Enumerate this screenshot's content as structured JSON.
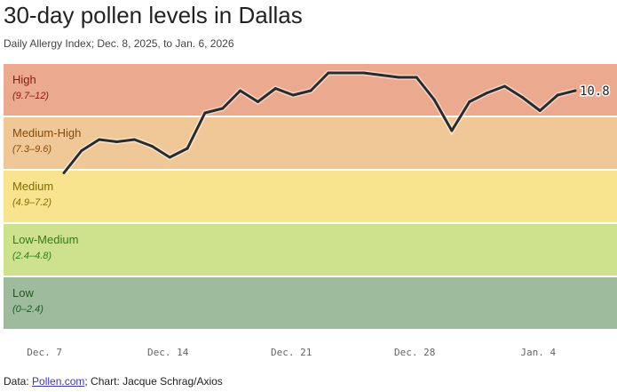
{
  "chart_data": {
    "type": "line",
    "title": "30-day pollen levels in Dallas",
    "subtitle": "Daily Allergy Index; Dec. 8, 2025, to Jan. 6, 2026",
    "ylim": [
      0,
      12
    ],
    "bands": [
      {
        "label": "High",
        "range": "(9.7–12)",
        "min": 9.7,
        "max": 12,
        "color": "#eba98f",
        "text": "#8b1a10"
      },
      {
        "label": "Medium-High",
        "range": "(7.3–9.6)",
        "min": 7.3,
        "max": 9.7,
        "color": "#f0c797",
        "text": "#8a4a08"
      },
      {
        "label": "Medium",
        "range": "(4.9–7.2)",
        "min": 4.9,
        "max": 7.3,
        "color": "#f8e38f",
        "text": "#8a6a00"
      },
      {
        "label": "Low-Medium",
        "range": "(2.4–4.8)",
        "min": 2.4,
        "max": 4.9,
        "color": "#cee28d",
        "text": "#2e7d1a"
      },
      {
        "label": "Low",
        "range": "(0–2.4)",
        "min": 0,
        "max": 2.4,
        "color": "#9fbb9d",
        "text": "#1f5a1f"
      }
    ],
    "x_ticks": [
      {
        "label": "Dec. 7",
        "day": -1
      },
      {
        "label": "Dec. 14",
        "day": 6
      },
      {
        "label": "Dec. 21",
        "day": 13
      },
      {
        "label": "Dec. 28",
        "day": 20
      },
      {
        "label": "Jan. 4",
        "day": 27
      }
    ],
    "values": [
      7.1,
      8.1,
      8.6,
      8.5,
      8.6,
      8.3,
      7.8,
      8.2,
      9.8,
      10.0,
      10.8,
      10.3,
      10.9,
      10.6,
      10.8,
      11.6,
      11.6,
      11.6,
      11.5,
      11.4,
      11.4,
      10.4,
      9.0,
      10.3,
      10.7,
      11.0,
      10.5,
      9.9,
      10.6,
      10.8
    ],
    "last_label": "10.8"
  },
  "footer": {
    "prefix": "Data: ",
    "source": "Pollen.com",
    "suffix": "; Chart: Jacque Schrag/Axios"
  }
}
